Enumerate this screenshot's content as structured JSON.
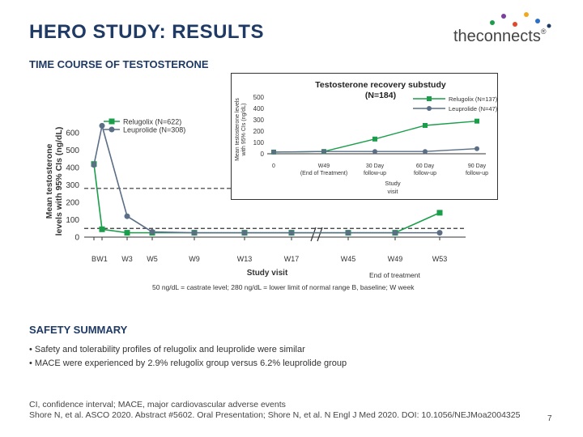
{
  "slide": {
    "title": "HERO STUDY: RESULTS",
    "section_time_course": "TIME COURSE OF TESTOSTERONE",
    "section_safety": "SAFETY SUMMARY",
    "bullets": [
      "Safety and tolerability profiles of relugolix and leuprolide were similar",
      "MACE were experienced by 2.9% relugolix group versus 6.2% leuprolide group"
    ],
    "footnote_1": "CI, confidence interval; MACE, major cardiovascular adverse events",
    "footnote_2": "Shore N, et al. ASCO 2020. Abstract #5602. Oral Presentation; Shore N, et al. N Engl J Med 2020. DOI: 10.1056/NEJMoa2004325",
    "page_number": "7",
    "logo_text": "theconnects",
    "logo_mark": "®",
    "colors": {
      "title": "#1f3a64",
      "relugolix": "#1a9e4a",
      "leuprolide": "#5a6e86"
    }
  },
  "chart_data": [
    {
      "type": "line",
      "title": "",
      "ylabel_lines": [
        "Mean testosterone",
        "levels with 95% CIs (ng/dL)"
      ],
      "xlabel": "Study visit",
      "categories": [
        "B",
        "W1",
        "W3",
        "W5",
        "W9",
        "W13",
        "W17",
        "W45",
        "W49",
        "W53"
      ],
      "yticks": [
        0,
        100,
        200,
        300,
        400,
        500,
        600
      ],
      "ylim": [
        0,
        650
      ],
      "series": [
        {
          "name": "Relugolix (N=622)",
          "values": [
            420,
            45,
            25,
            25,
            25,
            25,
            25,
            25,
            25,
            140
          ]
        },
        {
          "name": "Leuprolide (N=308)",
          "values": [
            415,
            640,
            120,
            30,
            25,
            25,
            25,
            25,
            25,
            25
          ]
        }
      ],
      "reference_lines": [
        50,
        280
      ],
      "end_of_treatment_label": "End of treatment",
      "end_of_treatment_category": "W49",
      "footnote": "50 ng/dL = castrate level; 280 ng/dL = lower limit of normal range B, baseline; W week"
    },
    {
      "type": "line",
      "title_lines": [
        "Testosterone recovery substudy",
        "(N=184)"
      ],
      "ylabel_lines": [
        "Mean testosterone levels",
        "with 95% CIs (ng/dL)"
      ],
      "xlabel_lines": [
        "Study",
        "visit"
      ],
      "categories": [
        [
          "0"
        ],
        [
          "W49",
          "(End of Treatment)"
        ],
        [
          "30 Day",
          "follow-up"
        ],
        [
          "60 Day",
          "follow-up"
        ],
        [
          "90 Day",
          "follow-up"
        ]
      ],
      "yticks": [
        0,
        100,
        200,
        300,
        400,
        500
      ],
      "ylim": [
        0,
        520
      ],
      "series": [
        {
          "name": "Relugolix (N=137)",
          "values": [
            15,
            20,
            130,
            250,
            288
          ]
        },
        {
          "name": "Leuprolide (N=47)",
          "values": [
            15,
            20,
            20,
            20,
            45
          ]
        }
      ]
    }
  ]
}
